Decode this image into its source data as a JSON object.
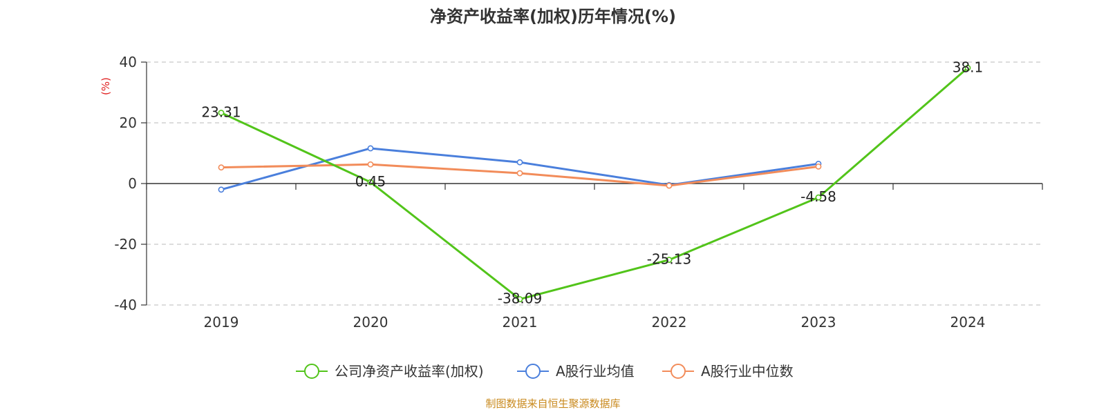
{
  "chart_data": {
    "type": "line",
    "title": "净资产收益率(加权)历年情况(%)",
    "ylabel": "(%)",
    "xlabel": "",
    "categories": [
      "2019",
      "2020",
      "2021",
      "2022",
      "2023",
      "2024"
    ],
    "ylim": [
      -40,
      40
    ],
    "yticks": [
      40,
      20,
      0,
      -20,
      -40
    ],
    "grid": true,
    "legend_position": "bottom",
    "series": [
      {
        "name": "公司净资产收益率(加权)",
        "color": "#52c41a",
        "values": [
          23.31,
          0.45,
          -38.09,
          -25.13,
          -4.58,
          38.1
        ],
        "labels": [
          "23.31",
          "0.45",
          "-38.09",
          "-25.13",
          "-4.58",
          "38.1"
        ]
      },
      {
        "name": "A股行业均值",
        "color": "#4a7fdc",
        "values": [
          -2.0,
          11.6,
          7.0,
          -0.5,
          6.5,
          null
        ]
      },
      {
        "name": "A股行业中位数",
        "color": "#f28c5a",
        "values": [
          5.3,
          6.3,
          3.4,
          -0.7,
          5.6,
          null
        ]
      }
    ],
    "source": "制图数据来自恒生聚源数据库",
    "ylabel_color": "#e02020",
    "source_color": "#c98a1e"
  }
}
